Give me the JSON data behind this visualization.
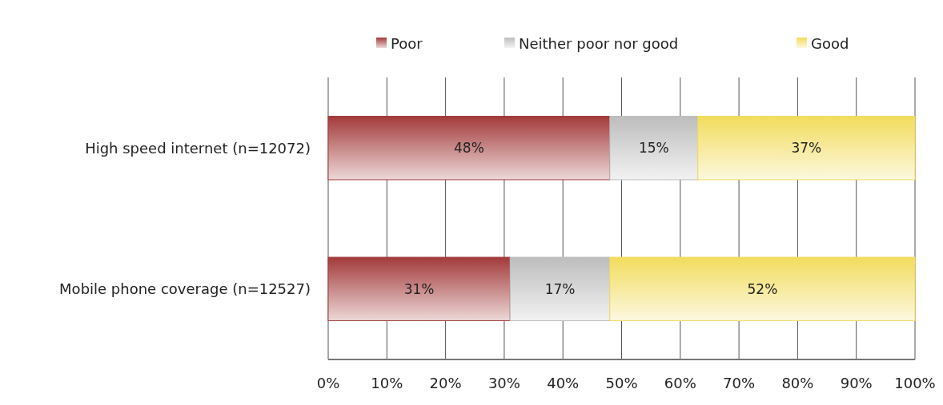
{
  "chart_data": {
    "type": "bar",
    "orientation": "horizontal",
    "stacked": true,
    "categories": [
      "High speed internet (n=12072)",
      "Mobile phone coverage (n=12527)"
    ],
    "series": [
      {
        "name": "Poor",
        "color": "#a33a3a",
        "values": [
          48,
          31
        ]
      },
      {
        "name": "Neither poor nor good",
        "color": "#bdbdbd",
        "values": [
          15,
          17
        ]
      },
      {
        "name": "Good",
        "color": "#f2dc5d",
        "values": [
          37,
          52
        ]
      }
    ],
    "xlim": [
      0,
      100
    ],
    "xticks": [
      {
        "value": 0,
        "label": "0%"
      },
      {
        "value": 10,
        "label": "10%"
      },
      {
        "value": 20,
        "label": "20%"
      },
      {
        "value": 30,
        "label": "30%"
      },
      {
        "value": 40,
        "label": "40%"
      },
      {
        "value": 50,
        "label": "50%"
      },
      {
        "value": 60,
        "label": "60%"
      },
      {
        "value": 70,
        "label": "70%"
      },
      {
        "value": 80,
        "label": "80%"
      },
      {
        "value": 90,
        "label": "90%"
      },
      {
        "value": 100,
        "label": "100%"
      }
    ],
    "value_labels": [
      [
        "48%",
        "31%"
      ],
      [
        "15%",
        "17%"
      ],
      [
        "37%",
        "52%"
      ]
    ],
    "grid": "x",
    "legend": "top"
  }
}
